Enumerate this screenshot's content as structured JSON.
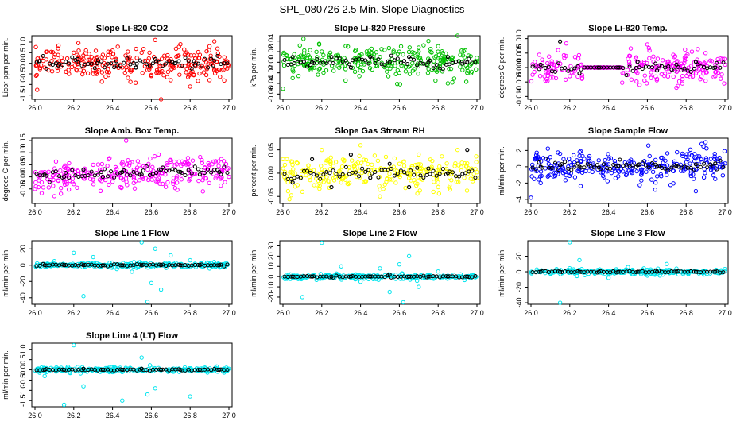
{
  "figure_title": "SPL_080726  2.5 Min. Slope Diagnostics",
  "colors": {
    "red": "#ff0000",
    "green": "#00c000",
    "magenta": "#ff00ff",
    "yellow": "#ffff00",
    "blue": "#0000ff",
    "cyan": "#00e5ee",
    "overlay": "#000000"
  },
  "chart_data": [
    {
      "type": "scatter",
      "title": "Slope Li-820 CO2",
      "ylabel": "Licor ppm per min.",
      "xlabel": "",
      "xlim": [
        26.0,
        27.0
      ],
      "ylim": [
        -1.7,
        1.3
      ],
      "x_ticks": [
        "26.0",
        "26.2",
        "26.4",
        "26.6",
        "26.8",
        "27.0"
      ],
      "y_ticks": [
        "-1.5",
        "-1.0",
        "-0.5",
        "0.0",
        "0.5",
        "1.0"
      ],
      "color_key": "red",
      "series_description": "dense scatter centered near 0 with spread about ±0.5 and outliers down to -1.7 and up to 1.2",
      "series": [
        {
          "name": "all",
          "x": [
            26.01,
            26.05,
            26.1,
            26.16,
            26.2,
            26.25,
            26.3,
            26.35,
            26.4,
            26.45,
            26.5,
            26.55,
            26.6,
            26.62,
            26.65,
            26.7,
            26.75,
            26.8,
            26.85,
            26.9,
            26.95,
            26.99
          ],
          "values": [
            0.1,
            -0.2,
            0.3,
            -0.4,
            0.5,
            0.2,
            -0.3,
            0.4,
            0.6,
            -0.2,
            0.1,
            0.5,
            -0.6,
            1.1,
            -1.7,
            -0.8,
            0.9,
            -1.1,
            0.4,
            0.8,
            -0.3,
            0.1
          ]
        },
        {
          "name": "subset",
          "x": [
            26.02,
            26.12,
            26.22,
            26.32,
            26.42,
            26.52,
            26.62,
            26.72,
            26.82,
            26.92
          ],
          "values": [
            0.1,
            -0.1,
            0.2,
            0.0,
            0.1,
            -0.2,
            0.2,
            0.0,
            0.1,
            -0.1
          ]
        }
      ]
    },
    {
      "type": "scatter",
      "title": "Slope Li-820 Pressure",
      "ylabel": "kPa per min.",
      "xlabel": "",
      "xlim": [
        26.0,
        27.0
      ],
      "ylim": [
        -0.07,
        0.05
      ],
      "x_ticks": [
        "26.0",
        "26.2",
        "26.4",
        "26.6",
        "26.8",
        "27.0"
      ],
      "y_ticks": [
        "-0.06",
        "-0.04",
        "-0.02",
        "0.00",
        "0.02",
        "0.04"
      ],
      "color_key": "green",
      "series_description": "dense scatter near 0 with spread about ±0.02, excursions to 0.05 and -0.07",
      "series": [
        {
          "name": "all",
          "x": [
            26.0,
            26.05,
            26.1,
            26.15,
            26.2,
            26.3,
            26.4,
            26.5,
            26.6,
            26.7,
            26.75,
            26.8,
            26.85,
            26.9,
            26.95,
            27.0
          ],
          "values": [
            -0.05,
            -0.03,
            0.01,
            -0.01,
            0.02,
            0.0,
            -0.01,
            0.01,
            -0.02,
            0.02,
            0.04,
            0.03,
            -0.04,
            0.05,
            -0.02,
            0.0
          ]
        },
        {
          "name": "subset",
          "x": [
            26.05,
            26.15,
            26.25,
            26.35,
            26.45,
            26.55,
            26.65,
            26.75,
            26.85,
            26.95
          ],
          "values": [
            0.01,
            0.0,
            0.01,
            -0.01,
            0.01,
            0.0,
            0.01,
            0.0,
            0.01,
            0.0
          ]
        }
      ]
    },
    {
      "type": "scatter",
      "title": "Slope Li-820 Temp.",
      "ylabel": "degrees C per min.",
      "xlabel": "",
      "xlim": [
        26.0,
        27.0
      ],
      "ylim": [
        -0.011,
        0.011
      ],
      "x_ticks": [
        "26.0",
        "26.2",
        "26.4",
        "26.6",
        "26.8",
        "27.0"
      ],
      "y_ticks": [
        "-0.010",
        "-0.005",
        "0.000",
        "0.005",
        "0.010"
      ],
      "color_key": "magenta",
      "series_description": "scatter within ±0.005 with a flat zero segment from 26.27 to 26.47",
      "series": [
        {
          "name": "all",
          "x": [
            26.02,
            26.08,
            26.14,
            26.2,
            26.26,
            26.3,
            26.35,
            26.4,
            26.45,
            26.5,
            26.56,
            26.6,
            26.65,
            26.7,
            26.75,
            26.8,
            26.85,
            26.9,
            26.95,
            27.0
          ],
          "values": [
            0.002,
            -0.004,
            0.006,
            -0.003,
            0.001,
            0.0,
            0.0,
            0.0,
            0.0,
            0.003,
            -0.006,
            0.008,
            -0.004,
            0.002,
            -0.007,
            0.004,
            -0.002,
            0.005,
            -0.003,
            0.001
          ]
        },
        {
          "name": "subset",
          "x": [
            26.05,
            26.15,
            26.25,
            26.35,
            26.45,
            26.55,
            26.65,
            26.75,
            26.85,
            26.95
          ],
          "values": [
            0.001,
            0.009,
            -0.002,
            0.0,
            0.0,
            0.002,
            -0.001,
            0.001,
            0.002,
            0.0
          ]
        }
      ]
    },
    {
      "type": "scatter",
      "title": "Slope Amb. Box Temp.",
      "ylabel": "degrees C per min.",
      "xlabel": "",
      "xlim": [
        26.0,
        27.0
      ],
      "ylim": [
        -0.11,
        0.16
      ],
      "x_ticks": [
        "26.0",
        "26.2",
        "26.4",
        "26.6",
        "26.8",
        "27.0"
      ],
      "y_ticks": [
        "-0.05",
        "0.00",
        "0.05",
        "0.10",
        "0.15"
      ],
      "color_key": "magenta",
      "series_description": "dense scatter with slight upward trend from about -0.02 to 0.03, spread about ±0.05",
      "series": [
        {
          "name": "all",
          "x": [
            26.0,
            26.05,
            26.1,
            26.15,
            26.2,
            26.3,
            26.4,
            26.47,
            26.5,
            26.6,
            26.7,
            26.8,
            26.9,
            27.0
          ],
          "values": [
            -0.05,
            0.02,
            -0.08,
            0.04,
            -0.03,
            0.05,
            -0.02,
            0.15,
            0.06,
            0.01,
            0.07,
            -0.01,
            0.05,
            0.0
          ]
        },
        {
          "name": "subset",
          "x": [
            26.05,
            26.15,
            26.25,
            26.35,
            26.45,
            26.55,
            26.65,
            26.75,
            26.85,
            26.95
          ],
          "values": [
            0.01,
            0.0,
            0.03,
            0.0,
            0.02,
            0.01,
            0.03,
            0.02,
            0.01,
            0.02
          ]
        }
      ]
    },
    {
      "type": "scatter",
      "title": "Slope Gas Stream RH",
      "ylabel": "percent per min.",
      "xlabel": "",
      "xlim": [
        26.0,
        27.0
      ],
      "ylim": [
        -0.065,
        0.075
      ],
      "x_ticks": [
        "26.0",
        "26.2",
        "26.4",
        "26.6",
        "26.8",
        "27.0"
      ],
      "y_ticks": [
        "-0.05",
        "0.00",
        "0.05"
      ],
      "color_key": "yellow",
      "series_description": "dense scatter spread about ±0.05 around 0",
      "series": [
        {
          "name": "all",
          "x": [
            26.0,
            26.1,
            26.2,
            26.3,
            26.4,
            26.5,
            26.6,
            26.7,
            26.8,
            26.9,
            27.0
          ],
          "values": [
            0.03,
            -0.04,
            0.05,
            -0.02,
            0.06,
            -0.05,
            0.02,
            0.04,
            -0.03,
            0.05,
            -0.01
          ]
        },
        {
          "name": "subset",
          "x": [
            26.05,
            26.15,
            26.25,
            26.35,
            26.45,
            26.55,
            26.65,
            26.75,
            26.85,
            26.95
          ],
          "values": [
            -0.02,
            0.03,
            -0.03,
            0.04,
            -0.01,
            0.02,
            -0.03,
            0.01,
            0.0,
            0.05
          ]
        }
      ]
    },
    {
      "type": "scatter",
      "title": "Slope Sample Flow",
      "ylabel": "ml/min per min.",
      "xlabel": "",
      "xlim": [
        26.0,
        27.0
      ],
      "ylim": [
        -4.5,
        3.5
      ],
      "x_ticks": [
        "26.0",
        "26.2",
        "26.4",
        "26.6",
        "26.8",
        "27.0"
      ],
      "y_ticks": [
        "-4",
        "-2",
        "0",
        "2"
      ],
      "color_key": "blue",
      "series_description": "dense band near 0 with excursions to -3.8 and 3.0",
      "series": [
        {
          "name": "all",
          "x": [
            26.0,
            26.05,
            26.1,
            26.2,
            26.3,
            26.4,
            26.5,
            26.6,
            26.7,
            26.8,
            26.85,
            26.88,
            26.9,
            26.95,
            27.0
          ],
          "values": [
            -3.8,
            -2.0,
            -1.0,
            0.5,
            -0.5,
            0.3,
            -0.4,
            0.6,
            -0.6,
            1.2,
            -3.0,
            2.8,
            3.0,
            -1.5,
            0.4
          ]
        },
        {
          "name": "subset",
          "x": [
            26.05,
            26.15,
            26.25,
            26.35,
            26.45,
            26.55,
            26.65,
            26.75,
            26.85,
            26.95
          ],
          "values": [
            0.0,
            0.2,
            0.0,
            -0.1,
            0.1,
            0.2,
            0.0,
            0.1,
            0.3,
            0.4
          ]
        }
      ]
    },
    {
      "type": "scatter",
      "title": "Slope Line 1 Flow",
      "ylabel": "ml/min per min.",
      "xlabel": "",
      "xlim": [
        26.0,
        27.0
      ],
      "ylim": [
        -48,
        30
      ],
      "x_ticks": [
        "26.0",
        "26.2",
        "26.4",
        "26.6",
        "26.8",
        "27.0"
      ],
      "y_ticks": [
        "-40",
        "-20",
        "0",
        "20"
      ],
      "color_key": "cyan",
      "series_description": "tight band near 0 with scattered outliers between -45 and 28",
      "series": [
        {
          "name": "all",
          "x": [
            26.1,
            26.2,
            26.25,
            26.3,
            26.5,
            26.55,
            26.58,
            26.6,
            26.62,
            26.65,
            26.7,
            26.8,
            26.9
          ],
          "values": [
            5,
            15,
            -38,
            10,
            -8,
            28,
            -45,
            -22,
            20,
            -30,
            12,
            6,
            -4
          ]
        },
        {
          "name": "subset",
          "x": [
            26.05,
            26.15,
            26.25,
            26.35,
            26.45,
            26.55,
            26.65,
            26.75,
            26.85,
            26.95
          ],
          "values": [
            0,
            0,
            0,
            0,
            0,
            0,
            0,
            0,
            0,
            0
          ]
        }
      ]
    },
    {
      "type": "scatter",
      "title": "Slope Line 2 Flow",
      "ylabel": "ml/min per min.",
      "xlabel": "",
      "xlim": [
        26.0,
        27.0
      ],
      "ylim": [
        -27,
        35
      ],
      "x_ticks": [
        "26.0",
        "26.2",
        "26.4",
        "26.6",
        "26.8",
        "27.0"
      ],
      "y_ticks": [
        "-20",
        "-10",
        "0",
        "10",
        "20",
        "30"
      ],
      "color_key": "cyan",
      "series_description": "tight band near 0 with outliers up to 33 and down to -25",
      "series": [
        {
          "name": "all",
          "x": [
            26.1,
            26.2,
            26.3,
            26.4,
            26.5,
            26.55,
            26.6,
            26.62,
            26.65,
            26.7,
            26.8
          ],
          "values": [
            -20,
            33,
            10,
            -5,
            8,
            -15,
            12,
            -25,
            20,
            -10,
            5
          ]
        },
        {
          "name": "subset",
          "x": [
            26.05,
            26.15,
            26.25,
            26.35,
            26.45,
            26.55,
            26.65,
            26.75,
            26.85,
            26.95
          ],
          "values": [
            0,
            0,
            0,
            0,
            0,
            2,
            0,
            0,
            0,
            0
          ]
        }
      ]
    },
    {
      "type": "scatter",
      "title": "Slope Line 3 Flow",
      "ylabel": "ml/min per min.",
      "xlabel": "",
      "xlim": [
        26.0,
        27.0
      ],
      "ylim": [
        -42,
        40
      ],
      "x_ticks": [
        "26.0",
        "26.2",
        "26.4",
        "26.6",
        "26.8",
        "27.0"
      ],
      "y_ticks": [
        "-40",
        "-20",
        "0",
        "20"
      ],
      "color_key": "cyan",
      "series_description": "tight band near 0 with outliers to 38 and -40",
      "series": [
        {
          "name": "all",
          "x": [
            26.15,
            26.2,
            26.25,
            26.4,
            26.5,
            26.6,
            26.7,
            26.75
          ],
          "values": [
            -40,
            38,
            15,
            -8,
            6,
            -5,
            10,
            4
          ]
        },
        {
          "name": "subset",
          "x": [
            26.05,
            26.15,
            26.25,
            26.35,
            26.45,
            26.55,
            26.65,
            26.75,
            26.85,
            26.95
          ],
          "values": [
            0,
            0,
            0,
            0,
            0,
            0,
            0,
            0,
            0,
            0
          ]
        }
      ]
    },
    {
      "type": "scatter",
      "title": "Slope Line 4 (LT) Flow",
      "ylabel": "ml/min per min.",
      "xlabel": "",
      "xlim": [
        26.0,
        27.0
      ],
      "ylim": [
        -1.8,
        1.3
      ],
      "x_ticks": [
        "26.0",
        "26.2",
        "26.4",
        "26.6",
        "26.8",
        "27.0"
      ],
      "y_ticks": [
        "-1.5",
        "-1.0",
        "-0.5",
        "0.0",
        "0.5",
        "1.0"
      ],
      "color_key": "cyan",
      "series_description": "tight band near 0 with outliers to 1.2 and -1.7",
      "series": [
        {
          "name": "all",
          "x": [
            26.05,
            26.15,
            26.2,
            26.25,
            26.45,
            26.55,
            26.58,
            26.62,
            26.8
          ],
          "values": [
            -0.3,
            -1.7,
            1.2,
            -0.8,
            -1.5,
            0.6,
            -1.2,
            -0.9,
            -1.3
          ]
        },
        {
          "name": "subset",
          "x": [
            26.05,
            26.15,
            26.25,
            26.35,
            26.45,
            26.55,
            26.65,
            26.75,
            26.85,
            26.95
          ],
          "values": [
            0,
            0,
            0.05,
            0,
            0,
            0.05,
            0,
            0,
            0,
            0
          ]
        }
      ]
    }
  ]
}
